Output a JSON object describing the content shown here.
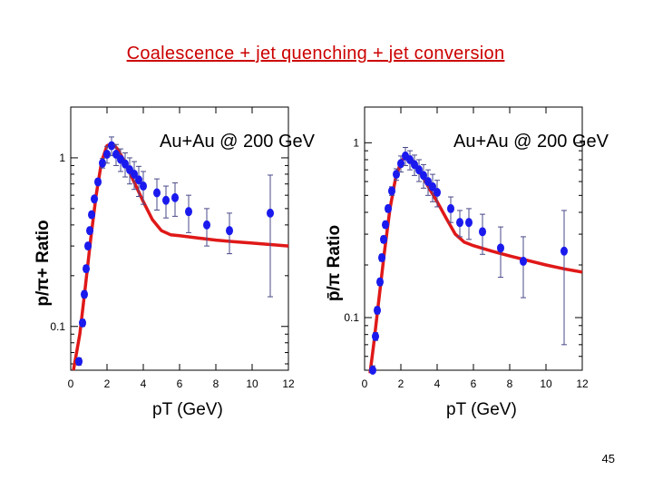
{
  "slide": {
    "title": "Coalescence + jet quenching + jet conversion",
    "page_number": "45"
  },
  "colors": {
    "title": "#cc0000",
    "curve": "#e01818",
    "points": "#1a1aee"
  },
  "chart_data": [
    {
      "type": "scatter",
      "title": "Au+Au @ 200 GeV",
      "xlabel": "pT (GeV)",
      "ylabel": "p/π+ Ratio",
      "xlim": [
        0,
        12
      ],
      "ylim": [
        0.055,
        2.0
      ],
      "yscale": "log",
      "x_ticks": [
        0,
        2,
        4,
        6,
        8,
        10,
        12
      ],
      "y_ticks": [
        {
          "value": 0.1,
          "label": "0.1"
        },
        {
          "value": 1,
          "label": "1"
        }
      ],
      "points": [
        {
          "x": 0.45,
          "y": 0.062,
          "err": 0.003
        },
        {
          "x": 0.65,
          "y": 0.105,
          "err": 0.005
        },
        {
          "x": 0.75,
          "y": 0.155,
          "err": 0.007
        },
        {
          "x": 0.85,
          "y": 0.22,
          "err": 0.01
        },
        {
          "x": 0.95,
          "y": 0.3,
          "err": 0.012
        },
        {
          "x": 1.05,
          "y": 0.37,
          "err": 0.015
        },
        {
          "x": 1.15,
          "y": 0.46,
          "err": 0.018
        },
        {
          "x": 1.3,
          "y": 0.57,
          "err": 0.02
        },
        {
          "x": 1.5,
          "y": 0.72,
          "err": 0.03
        },
        {
          "x": 1.75,
          "y": 0.93,
          "err": 0.06
        },
        {
          "x": 2.0,
          "y": 1.05,
          "err": 0.12
        },
        {
          "x": 2.25,
          "y": 1.18,
          "err": 0.15
        },
        {
          "x": 2.5,
          "y": 1.05,
          "err": 0.15
        },
        {
          "x": 2.75,
          "y": 0.98,
          "err": 0.15
        },
        {
          "x": 3.0,
          "y": 0.92,
          "err": 0.15
        },
        {
          "x": 3.25,
          "y": 0.85,
          "err": 0.15
        },
        {
          "x": 3.5,
          "y": 0.8,
          "err": 0.15
        },
        {
          "x": 3.75,
          "y": 0.74,
          "err": 0.15
        },
        {
          "x": 4.0,
          "y": 0.68,
          "err": 0.15
        },
        {
          "x": 4.75,
          "y": 0.62,
          "err": 0.13
        },
        {
          "x": 5.25,
          "y": 0.56,
          "err": 0.12
        },
        {
          "x": 5.75,
          "y": 0.58,
          "err": 0.13
        },
        {
          "x": 6.5,
          "y": 0.48,
          "err": 0.12
        },
        {
          "x": 7.5,
          "y": 0.4,
          "err": 0.1
        },
        {
          "x": 8.75,
          "y": 0.37,
          "err": 0.1
        },
        {
          "x": 11.0,
          "y": 0.47,
          "err": 0.32
        }
      ],
      "curve": {
        "name": "Coalescence + jet quenching + jet conversion",
        "x": [
          0.15,
          0.5,
          0.8,
          1.1,
          1.4,
          1.7,
          2.0,
          2.3,
          2.6,
          2.9,
          3.2,
          3.6,
          4.0,
          4.5,
          5.0,
          5.5,
          6.0,
          7.0,
          8.0,
          9.0,
          10.0,
          11.0,
          12.0
        ],
        "y": [
          0.055,
          0.09,
          0.17,
          0.33,
          0.6,
          0.95,
          1.18,
          1.22,
          1.12,
          0.98,
          0.84,
          0.68,
          0.55,
          0.43,
          0.37,
          0.35,
          0.345,
          0.335,
          0.325,
          0.318,
          0.312,
          0.306,
          0.3
        ]
      }
    },
    {
      "type": "scatter",
      "title": "Au+Au @ 200 GeV",
      "xlabel": "pT (GeV)",
      "ylabel": "p̄/π Ratio",
      "xlim": [
        0,
        12
      ],
      "ylim": [
        0.05,
        1.6
      ],
      "yscale": "log",
      "x_ticks": [
        0,
        2,
        4,
        6,
        8,
        10,
        12
      ],
      "y_ticks": [
        {
          "value": 0.1,
          "label": "0.1"
        },
        {
          "value": 1,
          "label": "1"
        }
      ],
      "points": [
        {
          "x": 0.45,
          "y": 0.05,
          "err": 0.003
        },
        {
          "x": 0.6,
          "y": 0.078,
          "err": 0.004
        },
        {
          "x": 0.7,
          "y": 0.11,
          "err": 0.005
        },
        {
          "x": 0.85,
          "y": 0.16,
          "err": 0.007
        },
        {
          "x": 0.95,
          "y": 0.22,
          "err": 0.01
        },
        {
          "x": 1.05,
          "y": 0.28,
          "err": 0.012
        },
        {
          "x": 1.15,
          "y": 0.34,
          "err": 0.014
        },
        {
          "x": 1.3,
          "y": 0.42,
          "err": 0.018
        },
        {
          "x": 1.5,
          "y": 0.53,
          "err": 0.03
        },
        {
          "x": 1.75,
          "y": 0.66,
          "err": 0.05
        },
        {
          "x": 2.0,
          "y": 0.76,
          "err": 0.08
        },
        {
          "x": 2.25,
          "y": 0.84,
          "err": 0.1
        },
        {
          "x": 2.5,
          "y": 0.8,
          "err": 0.1
        },
        {
          "x": 2.75,
          "y": 0.75,
          "err": 0.1
        },
        {
          "x": 3.0,
          "y": 0.7,
          "err": 0.1
        },
        {
          "x": 3.25,
          "y": 0.65,
          "err": 0.1
        },
        {
          "x": 3.5,
          "y": 0.6,
          "err": 0.1
        },
        {
          "x": 3.75,
          "y": 0.56,
          "err": 0.1
        },
        {
          "x": 4.0,
          "y": 0.52,
          "err": 0.09
        },
        {
          "x": 4.75,
          "y": 0.42,
          "err": 0.07
        },
        {
          "x": 5.25,
          "y": 0.35,
          "err": 0.06
        },
        {
          "x": 5.75,
          "y": 0.35,
          "err": 0.07
        },
        {
          "x": 6.5,
          "y": 0.31,
          "err": 0.08
        },
        {
          "x": 7.5,
          "y": 0.25,
          "err": 0.08
        },
        {
          "x": 8.75,
          "y": 0.21,
          "err": 0.08
        },
        {
          "x": 11.0,
          "y": 0.24,
          "err": 0.17
        }
      ],
      "curve": {
        "name": "Coalescence + jet quenching + jet conversion",
        "x": [
          0.3,
          0.5,
          0.8,
          1.1,
          1.4,
          1.7,
          2.0,
          2.3,
          2.6,
          2.9,
          3.2,
          3.6,
          4.0,
          4.5,
          5.0,
          5.5,
          6.0,
          7.0,
          8.0,
          9.0,
          10.0,
          11.0,
          12.0
        ],
        "y": [
          0.048,
          0.07,
          0.13,
          0.24,
          0.42,
          0.62,
          0.78,
          0.84,
          0.8,
          0.72,
          0.64,
          0.54,
          0.46,
          0.37,
          0.3,
          0.27,
          0.258,
          0.24,
          0.225,
          0.212,
          0.2,
          0.19,
          0.182
        ]
      }
    }
  ]
}
